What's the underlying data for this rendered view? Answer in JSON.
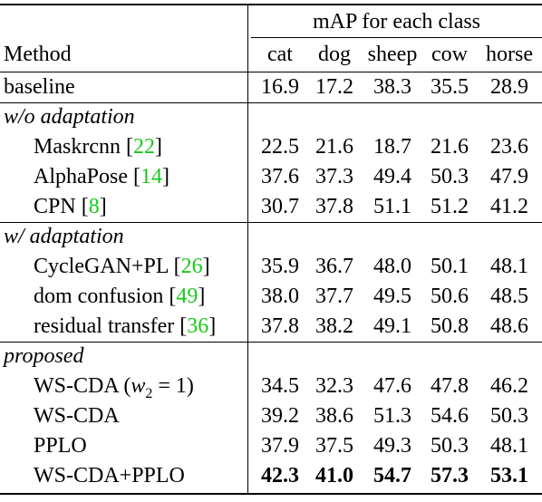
{
  "header": {
    "group_title": "mAP for each class",
    "method_label": "Method",
    "classes": [
      "cat",
      "dog",
      "sheep",
      "cow",
      "horse"
    ]
  },
  "baseline": {
    "label": "baseline",
    "values": [
      "16.9",
      "17.2",
      "38.3",
      "35.5",
      "28.9"
    ]
  },
  "sections": [
    {
      "title": "w/o adaptation",
      "rows": [
        {
          "name": "Maskrcnn",
          "cite": "22",
          "values": [
            "22.5",
            "21.6",
            "18.7",
            "21.6",
            "23.6"
          ]
        },
        {
          "name": "AlphaPose",
          "cite": "14",
          "values": [
            "37.6",
            "37.3",
            "49.4",
            "50.3",
            "47.9"
          ]
        },
        {
          "name": "CPN",
          "cite": "8",
          "values": [
            "30.7",
            "37.8",
            "51.1",
            "51.2",
            "41.2"
          ]
        }
      ]
    },
    {
      "title": "w/ adaptation",
      "rows": [
        {
          "name": "CycleGAN+PL",
          "cite": "26",
          "values": [
            "35.9",
            "36.7",
            "48.0",
            "50.1",
            "48.1"
          ]
        },
        {
          "name": "dom confusion",
          "cite": "49",
          "values": [
            "38.0",
            "37.7",
            "49.5",
            "50.6",
            "48.5"
          ]
        },
        {
          "name": "residual transfer",
          "cite": "36",
          "values": [
            "37.8",
            "38.2",
            "49.1",
            "50.8",
            "48.6"
          ]
        }
      ]
    },
    {
      "title": "proposed",
      "rows": [
        {
          "name": "WS-CDA",
          "math": "w",
          "math_sub": "2",
          "math_rest": " = 1",
          "values": [
            "34.5",
            "32.3",
            "47.6",
            "47.8",
            "46.2"
          ]
        },
        {
          "name": "WS-CDA",
          "values": [
            "39.2",
            "38.6",
            "51.3",
            "54.6",
            "50.3"
          ]
        },
        {
          "name": "PPLO",
          "values": [
            "37.9",
            "37.5",
            "49.3",
            "50.3",
            "48.1"
          ]
        },
        {
          "name": "WS-CDA+PPLO",
          "values": [
            "42.3",
            "41.0",
            "54.7",
            "57.3",
            "53.1"
          ],
          "bold": true
        }
      ]
    }
  ]
}
